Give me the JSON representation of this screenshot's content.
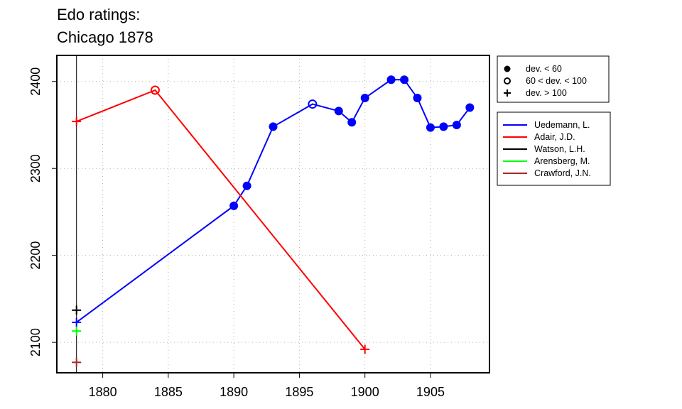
{
  "title_line1": "Edo ratings:",
  "title_line2": "Chicago 1878",
  "chart_data": {
    "type": "line",
    "xlim": [
      1876.5,
      1909.5
    ],
    "ylim": [
      2065,
      2430
    ],
    "x_ticks": [
      1880,
      1885,
      1890,
      1895,
      1900,
      1905
    ],
    "y_ticks": [
      2100,
      2200,
      2300,
      2400
    ],
    "grid": true,
    "reference_line_x": 1878,
    "deviation_legend": [
      {
        "marker": "filled-circle",
        "label": "dev. < 60"
      },
      {
        "marker": "open-circle",
        "label": "60 < dev. < 100"
      },
      {
        "marker": "plus",
        "label": "dev. > 100"
      }
    ],
    "series": [
      {
        "name": "Uedemann, L.",
        "color": "#0000ff",
        "points": [
          {
            "x": 1878,
            "y": 2123,
            "marker": "plus"
          },
          {
            "x": 1890,
            "y": 2257,
            "marker": "filled-circle"
          },
          {
            "x": 1891,
            "y": 2280,
            "marker": "filled-circle"
          },
          {
            "x": 1893,
            "y": 2348,
            "marker": "filled-circle"
          },
          {
            "x": 1896,
            "y": 2374,
            "marker": "open-circle"
          },
          {
            "x": 1898,
            "y": 2366,
            "marker": "filled-circle"
          },
          {
            "x": 1899,
            "y": 2353,
            "marker": "filled-circle"
          },
          {
            "x": 1900,
            "y": 2381,
            "marker": "filled-circle"
          },
          {
            "x": 1902,
            "y": 2402,
            "marker": "filled-circle"
          },
          {
            "x": 1903,
            "y": 2402,
            "marker": "filled-circle"
          },
          {
            "x": 1904,
            "y": 2381,
            "marker": "filled-circle"
          },
          {
            "x": 1905,
            "y": 2347,
            "marker": "filled-circle"
          },
          {
            "x": 1906,
            "y": 2348,
            "marker": "filled-circle"
          },
          {
            "x": 1907,
            "y": 2350,
            "marker": "filled-circle"
          },
          {
            "x": 1908,
            "y": 2370,
            "marker": "filled-circle"
          }
        ]
      },
      {
        "name": "Adair, J.D.",
        "color": "#ff0000",
        "points": [
          {
            "x": 1878,
            "y": 2354,
            "marker": "plus"
          },
          {
            "x": 1884,
            "y": 2390,
            "marker": "open-circle"
          },
          {
            "x": 1900,
            "y": 2092,
            "marker": "plus"
          }
        ]
      },
      {
        "name": "Watson, L.H.",
        "color": "#000000",
        "points": [
          {
            "x": 1878,
            "y": 2137,
            "marker": "plus"
          }
        ]
      },
      {
        "name": "Arensberg, M.",
        "color": "#00ff00",
        "points": [
          {
            "x": 1878,
            "y": 2113,
            "marker": "plus"
          }
        ]
      },
      {
        "name": "Crawford, J.N.",
        "color": "#a52a2a",
        "points": [
          {
            "x": 1878,
            "y": 2077,
            "marker": "plus"
          }
        ]
      }
    ]
  }
}
